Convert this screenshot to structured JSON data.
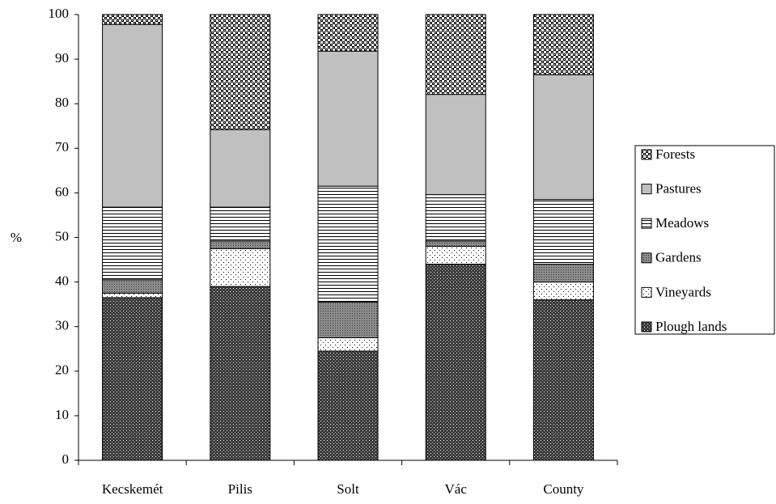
{
  "chart_data": {
    "type": "stacked_bar",
    "y_label": "%",
    "categories": [
      "Kecskemét",
      "Pilis",
      "Solt",
      "Vác",
      "County"
    ],
    "series": [
      {
        "name": "Plough lands",
        "color": "#3a3a3a",
        "values": [
          36.5,
          39,
          24.5,
          44,
          36
        ]
      },
      {
        "name": "Vineyards",
        "color": "#ffffff",
        "values": [
          1,
          8.5,
          3,
          4,
          4
        ]
      },
      {
        "name": "Gardens",
        "color": "#8c8c8c",
        "values": [
          3,
          1.7,
          8,
          1.2,
          4
        ]
      },
      {
        "name": "Meadows",
        "color": "#ffffff",
        "values": [
          16.3,
          7.6,
          26,
          10.4,
          14.5
        ]
      },
      {
        "name": "Pastures",
        "color": "#c0c0c0",
        "values": [
          41,
          17.4,
          30.3,
          22.5,
          28
        ]
      },
      {
        "name": "Forests",
        "color": "#ffffff",
        "values": [
          2.2,
          25.8,
          8.2,
          17.9,
          13.5
        ]
      }
    ],
    "ylim": [
      0,
      100
    ],
    "yticks": [
      0,
      10,
      20,
      30,
      40,
      50,
      60,
      70,
      80,
      90,
      100
    ],
    "legend": "right"
  }
}
